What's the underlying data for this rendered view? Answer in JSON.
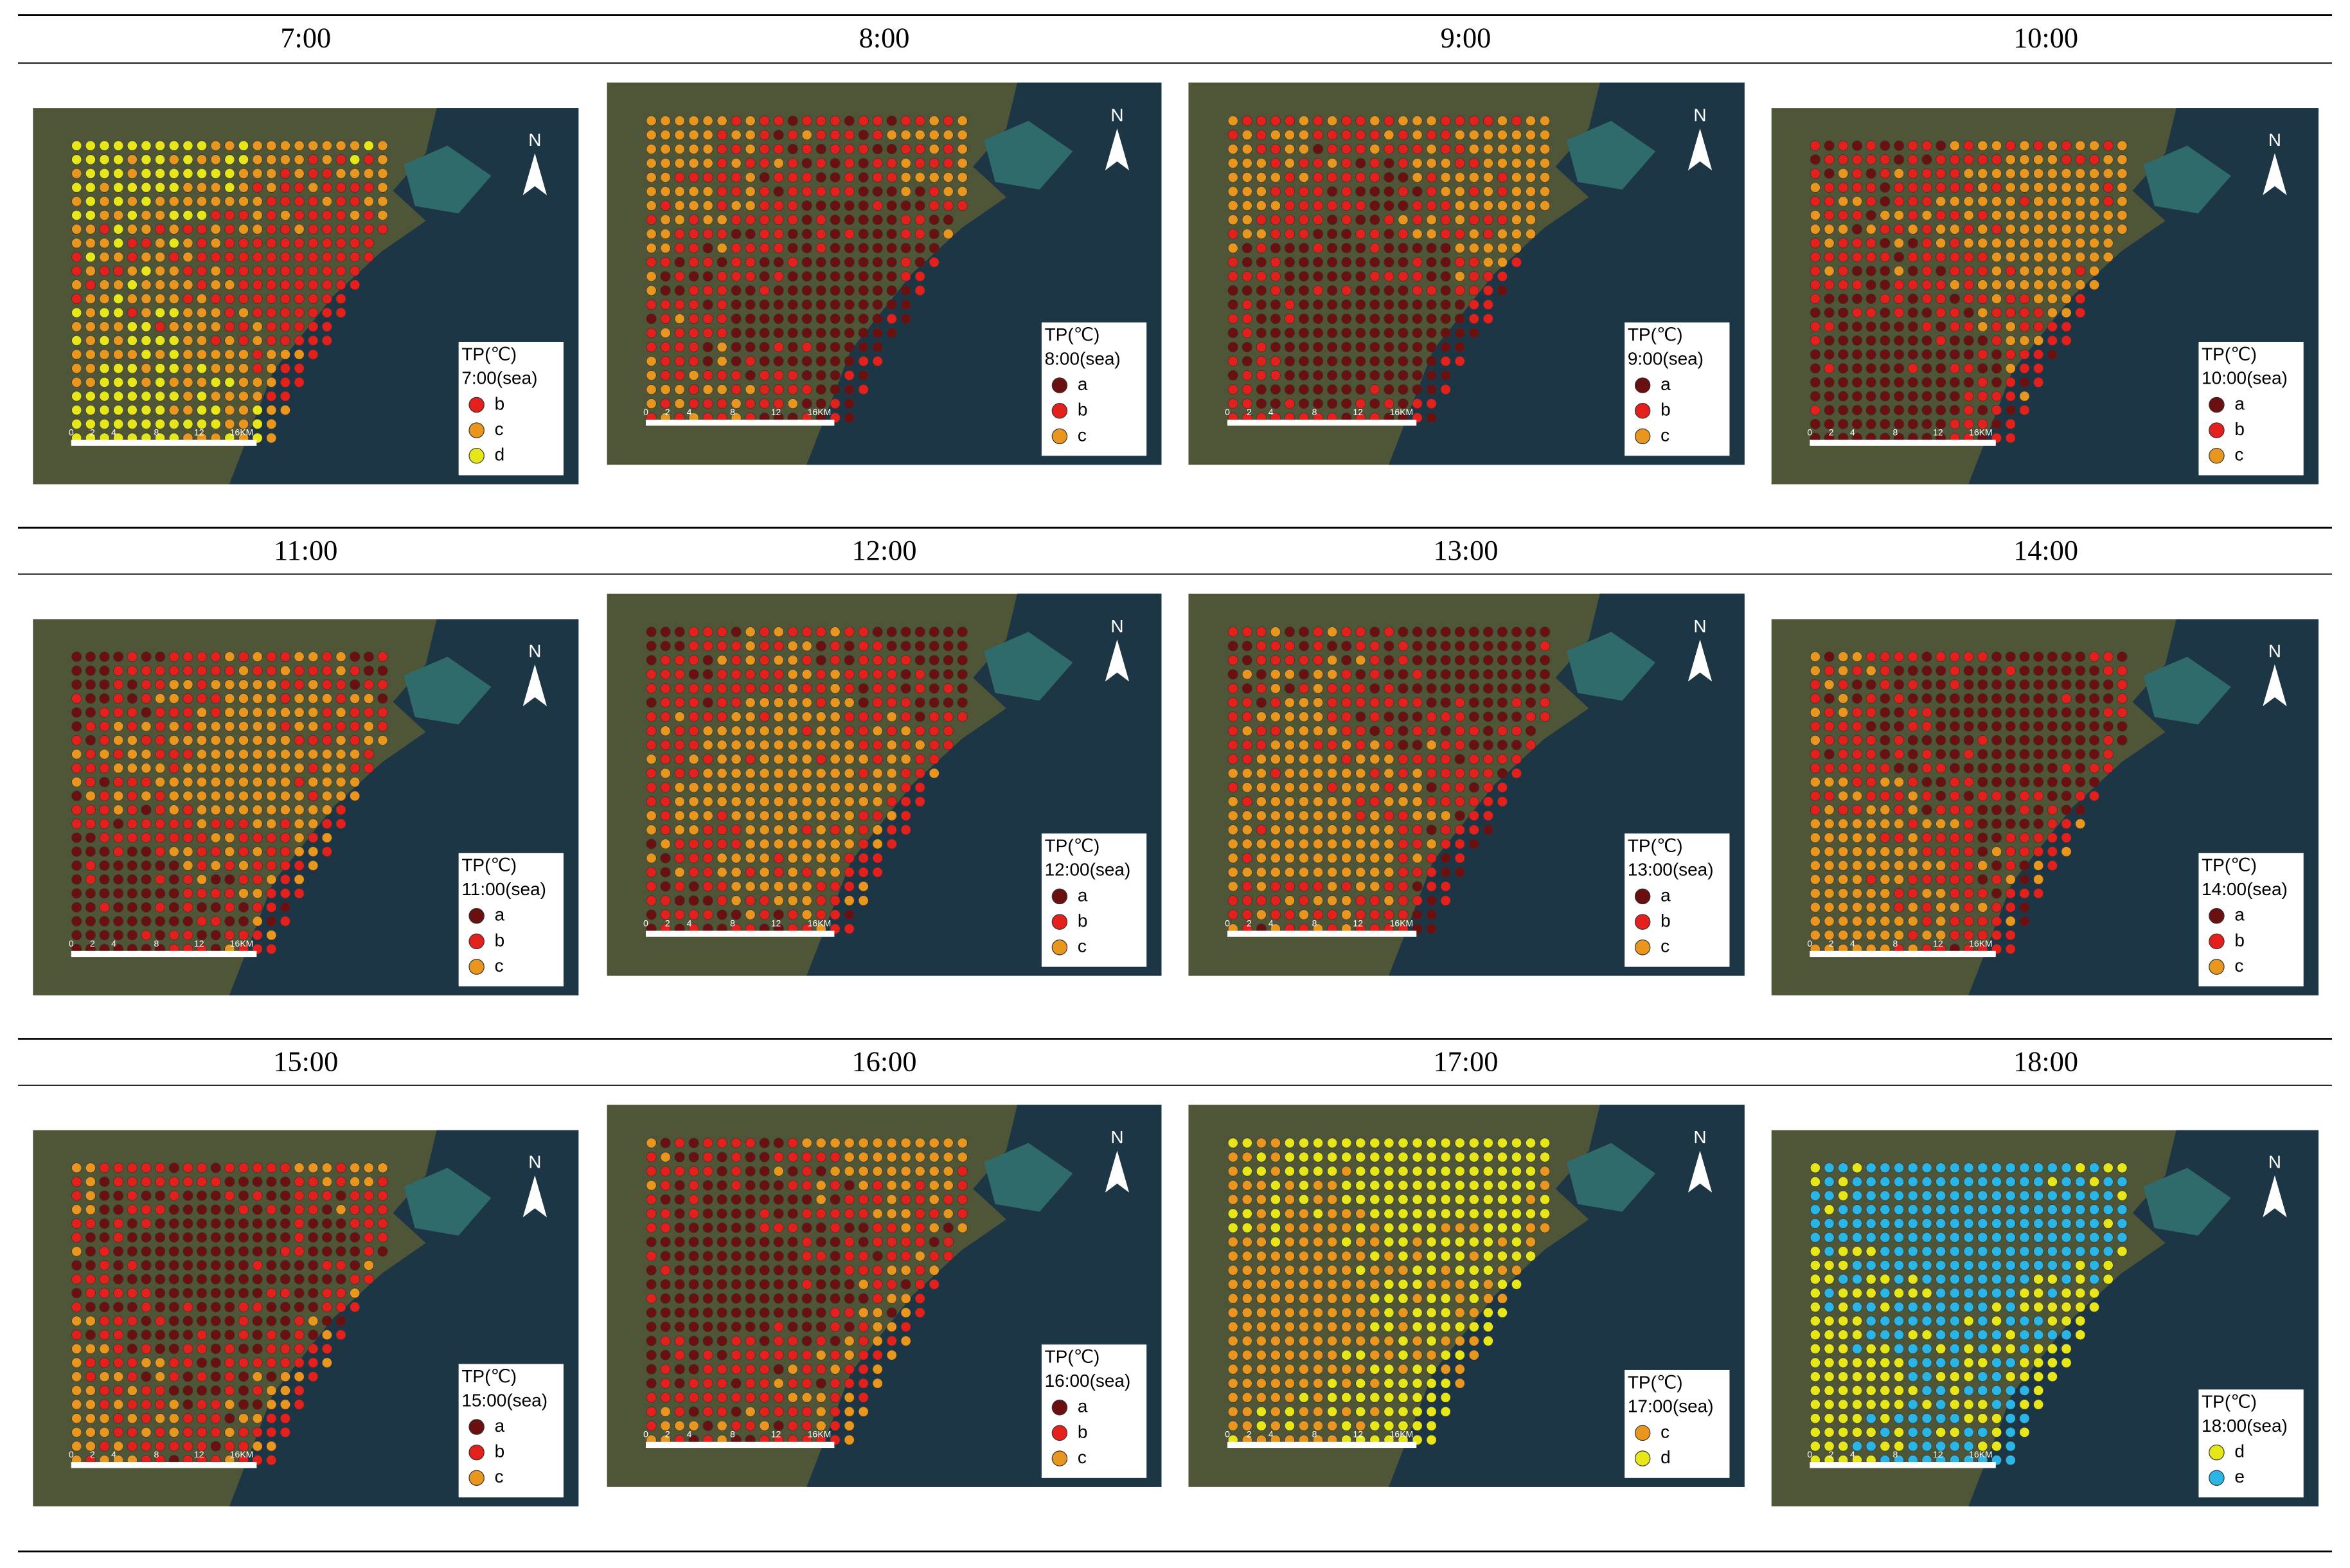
{
  "panels": [
    {
      "title": "7:00",
      "legend": {
        "title": "TP(℃)",
        "subtitle": "7:00(sea)",
        "items": [
          {
            "label": "b",
            "color": "#e3201b"
          },
          {
            "label": "c",
            "color": "#e8961e"
          },
          {
            "label": "d",
            "color": "#e6e619"
          }
        ]
      }
    },
    {
      "title": "8:00",
      "legend": {
        "title": "TP(℃)",
        "subtitle": "8:00(sea)",
        "items": [
          {
            "label": "a",
            "color": "#6b1010"
          },
          {
            "label": "b",
            "color": "#e3201b"
          },
          {
            "label": "c",
            "color": "#e8961e"
          }
        ]
      }
    },
    {
      "title": "9:00",
      "legend": {
        "title": "TP(℃)",
        "subtitle": "9:00(sea)",
        "items": [
          {
            "label": "a",
            "color": "#6b1010"
          },
          {
            "label": "b",
            "color": "#e3201b"
          },
          {
            "label": "c",
            "color": "#e8961e"
          }
        ]
      }
    },
    {
      "title": "10:00",
      "legend": {
        "title": "TP(℃)",
        "subtitle": "10:00(sea)",
        "items": [
          {
            "label": "a",
            "color": "#6b1010"
          },
          {
            "label": "b",
            "color": "#e3201b"
          },
          {
            "label": "c",
            "color": "#e8961e"
          }
        ]
      }
    },
    {
      "title": "11:00",
      "legend": {
        "title": "TP(℃)",
        "subtitle": "11:00(sea)",
        "items": [
          {
            "label": "a",
            "color": "#6b1010"
          },
          {
            "label": "b",
            "color": "#e3201b"
          },
          {
            "label": "c",
            "color": "#e8961e"
          }
        ]
      }
    },
    {
      "title": "12:00",
      "legend": {
        "title": "TP(℃)",
        "subtitle": "12:00(sea)",
        "items": [
          {
            "label": "a",
            "color": "#6b1010"
          },
          {
            "label": "b",
            "color": "#e3201b"
          },
          {
            "label": "c",
            "color": "#e8961e"
          }
        ]
      }
    },
    {
      "title": "13:00",
      "legend": {
        "title": "TP(℃)",
        "subtitle": "13:00(sea)",
        "items": [
          {
            "label": "a",
            "color": "#6b1010"
          },
          {
            "label": "b",
            "color": "#e3201b"
          },
          {
            "label": "c",
            "color": "#e8961e"
          }
        ]
      }
    },
    {
      "title": "14:00",
      "legend": {
        "title": "TP(℃)",
        "subtitle": "14:00(sea)",
        "items": [
          {
            "label": "a",
            "color": "#6b1010"
          },
          {
            "label": "b",
            "color": "#e3201b"
          },
          {
            "label": "c",
            "color": "#e8961e"
          }
        ]
      }
    },
    {
      "title": "15:00",
      "legend": {
        "title": "TP(℃)",
        "subtitle": "15:00(sea)",
        "items": [
          {
            "label": "a",
            "color": "#6b1010"
          },
          {
            "label": "b",
            "color": "#e3201b"
          },
          {
            "label": "c",
            "color": "#e8961e"
          }
        ]
      }
    },
    {
      "title": "16:00",
      "legend": {
        "title": "TP(℃)",
        "subtitle": "16:00(sea)",
        "items": [
          {
            "label": "a",
            "color": "#6b1010"
          },
          {
            "label": "b",
            "color": "#e3201b"
          },
          {
            "label": "c",
            "color": "#e8961e"
          }
        ]
      }
    },
    {
      "title": "17:00",
      "legend": {
        "title": "TP(℃)",
        "subtitle": "17:00(sea)",
        "items": [
          {
            "label": "c",
            "color": "#e8961e"
          },
          {
            "label": "d",
            "color": "#e6e619"
          }
        ]
      }
    },
    {
      "title": "18:00",
      "legend": {
        "title": "TP(℃)",
        "subtitle": "18:00(sea)",
        "items": [
          {
            "label": "d",
            "color": "#e6e619"
          },
          {
            "label": "e",
            "color": "#29b6e6"
          }
        ]
      }
    }
  ],
  "scale_bar": [
    "0",
    "2",
    "4",
    "8",
    "12",
    "16KM"
  ],
  "north": "N"
}
